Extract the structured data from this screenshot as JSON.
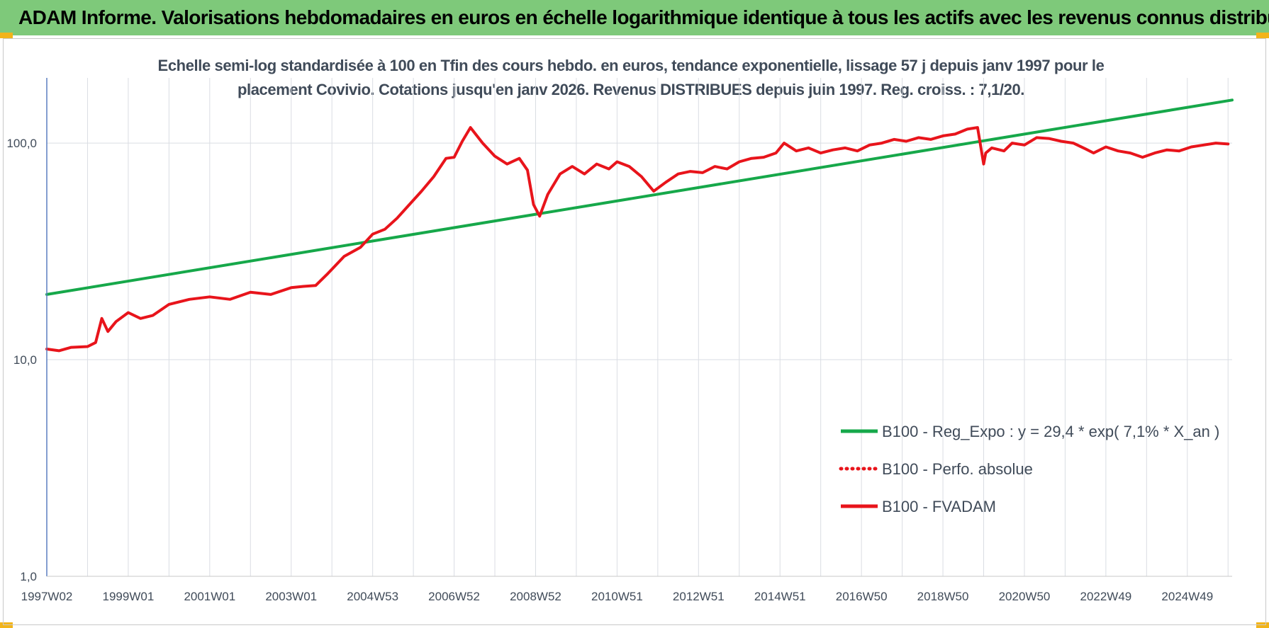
{
  "header": {
    "title": "ADAM Informe. Valorisations hebdomadaires en euros en échelle logarithmique identique à tous les actifs avec les revenus connus distribués"
  },
  "colors": {
    "header_bg": "#7ec97a",
    "trend": "#16a84a",
    "fvadam": "#e8141b",
    "text": "#404b59",
    "grid": "#dadde3"
  },
  "chart_data": {
    "type": "line",
    "title": "Echelle semi-log standardisée à 100 en Tfin des cours hebdo. en euros, tendance exponentielle, lissage 57 j depuis janv 1997 pour le placement Covivio. Cotations jusqu'en janv 2026. Revenus DISTRIBUES depuis juin 1997. Reg. croiss. : 7,1/20.",
    "xlabel": "",
    "ylabel": "",
    "yscale": "log",
    "ylim": [
      1,
      200
    ],
    "xlim": [
      1997.0,
      2026.1
    ],
    "y_ticks": [
      {
        "value": 1,
        "label": "1,0"
      },
      {
        "value": 10,
        "label": "10,0"
      },
      {
        "value": 100,
        "label": "100,0"
      }
    ],
    "x_ticks": [
      {
        "value": 1997.0,
        "label": "1997W02"
      },
      {
        "value": 1999.0,
        "label": "1999W01"
      },
      {
        "value": 2001.0,
        "label": "2001W01"
      },
      {
        "value": 2003.0,
        "label": "2003W01"
      },
      {
        "value": 2005.0,
        "label": "2004W53"
      },
      {
        "value": 2007.0,
        "label": "2006W52"
      },
      {
        "value": 2009.0,
        "label": "2008W52"
      },
      {
        "value": 2011.0,
        "label": "2010W51"
      },
      {
        "value": 2013.0,
        "label": "2012W51"
      },
      {
        "value": 2015.0,
        "label": "2014W51"
      },
      {
        "value": 2017.0,
        "label": "2016W50"
      },
      {
        "value": 2019.0,
        "label": "2018W50"
      },
      {
        "value": 2021.0,
        "label": "2020W50"
      },
      {
        "value": 2023.0,
        "label": "2022W49"
      },
      {
        "value": 2025.0,
        "label": "2024W49"
      }
    ],
    "grid": true,
    "legend_position": "bottom-right",
    "series": [
      {
        "name": "B100 - Reg_Expo : y = 29,4 * exp( 7,1% *  X_an )",
        "color": "#16a84a",
        "style": "solid",
        "x": [
          1997.0,
          2026.1
        ],
        "y": [
          20.0,
          158.0
        ]
      },
      {
        "name": "B100 - Perfo. absolue",
        "color": "#e8141b",
        "style": "dotted",
        "x": [],
        "y": []
      },
      {
        "name": "B100 - FVADAM",
        "color": "#e8141b",
        "style": "solid",
        "x": [
          1997.0,
          1997.3,
          1997.6,
          1998.0,
          1998.2,
          1998.35,
          1998.5,
          1998.7,
          1999.0,
          1999.3,
          1999.6,
          2000.0,
          2000.5,
          2001.0,
          2001.5,
          2002.0,
          2002.5,
          2003.0,
          2003.3,
          2003.6,
          2003.9,
          2004.3,
          2004.7,
          2005.0,
          2005.3,
          2005.6,
          2005.9,
          2006.2,
          2006.5,
          2006.8,
          2007.0,
          2007.2,
          2007.4,
          2007.7,
          2008.0,
          2008.3,
          2008.6,
          2008.8,
          2008.95,
          2009.1,
          2009.3,
          2009.6,
          2009.9,
          2010.2,
          2010.5,
          2010.8,
          2011.0,
          2011.3,
          2011.6,
          2011.9,
          2012.2,
          2012.5,
          2012.8,
          2013.1,
          2013.4,
          2013.7,
          2014.0,
          2014.3,
          2014.6,
          2014.9,
          2015.1,
          2015.4,
          2015.7,
          2016.0,
          2016.3,
          2016.6,
          2016.9,
          2017.2,
          2017.5,
          2017.8,
          2018.1,
          2018.4,
          2018.7,
          2019.0,
          2019.3,
          2019.6,
          2019.85,
          2020.0,
          2020.05,
          2020.2,
          2020.5,
          2020.7,
          2021.0,
          2021.3,
          2021.6,
          2021.9,
          2022.2,
          2022.5,
          2022.7,
          2023.0,
          2023.3,
          2023.6,
          2023.9,
          2024.2,
          2024.5,
          2024.8,
          2025.1,
          2025.4,
          2025.7,
          2026.0
        ],
        "y": [
          11.2,
          11.0,
          11.4,
          11.5,
          12.0,
          15.5,
          13.5,
          15.0,
          16.5,
          15.5,
          16.0,
          18.0,
          19.0,
          19.5,
          19.0,
          20.5,
          20.0,
          21.5,
          21.8,
          22.0,
          25.0,
          30.0,
          33.0,
          38.0,
          40.0,
          45.0,
          52.0,
          60.0,
          70.0,
          85.0,
          86.0,
          102.0,
          118.0,
          100.0,
          87.0,
          80.0,
          85.0,
          75.0,
          52.0,
          46.0,
          58.0,
          72.0,
          78.0,
          72.0,
          80.0,
          76.0,
          82.0,
          78.0,
          70.0,
          60.0,
          66.0,
          72.0,
          74.0,
          73.0,
          78.0,
          76.0,
          82.0,
          85.0,
          86.0,
          90.0,
          100.0,
          92.0,
          95.0,
          90.0,
          93.0,
          95.0,
          92.0,
          98.0,
          100.0,
          104.0,
          102.0,
          106.0,
          104.0,
          108.0,
          110.0,
          116.0,
          118.0,
          80.0,
          90.0,
          95.0,
          92.0,
          100.0,
          98.0,
          106.0,
          105.0,
          102.0,
          100.0,
          94.0,
          90.0,
          96.0,
          92.0,
          90.0,
          86.0,
          90.0,
          93.0,
          92.0,
          96.0,
          98.0,
          100.0,
          99.0
        ]
      }
    ]
  }
}
